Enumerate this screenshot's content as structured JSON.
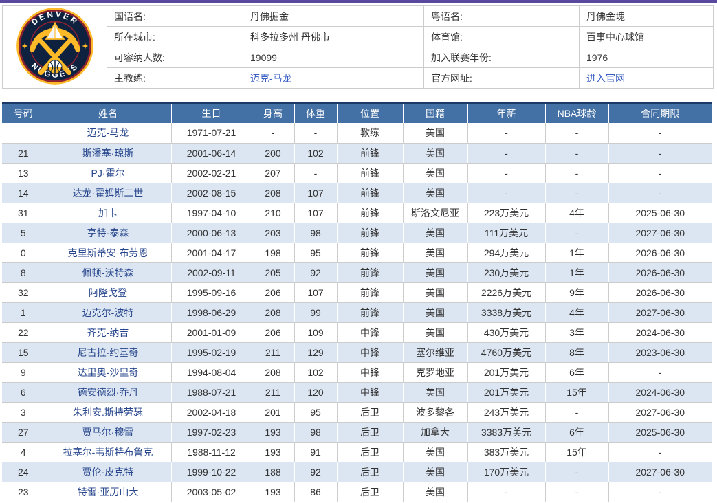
{
  "colors": {
    "top_bar": "#5a4a9f",
    "table_header_bg": "#4471a5",
    "alt_row_bg": "#dce6f2",
    "name_link": "#26458c",
    "info_link": "#3a5fc4",
    "table_top_border": "#1c3a68",
    "logo_navy": "#0e2240",
    "logo_gold": "#fdb927",
    "logo_maroon": "#8b2131"
  },
  "logo": {
    "icon": "denver-nuggets-logo",
    "top_text": "DENVER",
    "bottom_text": "NUGGETS"
  },
  "team_info": {
    "fields": [
      {
        "label": "国语名:",
        "value": "丹佛掘金"
      },
      {
        "label": "粤语名:",
        "value": "丹佛金塊"
      },
      {
        "label": "所在城市:",
        "value": "科多拉多州 丹佛市"
      },
      {
        "label": "体育馆:",
        "value": "百事中心球馆"
      },
      {
        "label": "可容纳人数:",
        "value": "19099"
      },
      {
        "label": "加入联赛年份:",
        "value": "1976"
      },
      {
        "label": "主教练:",
        "value": "迈克-马龙"
      },
      {
        "label": "官方网址:",
        "value": "进入官网"
      }
    ]
  },
  "roster": {
    "columns": [
      "号码",
      "姓名",
      "生日",
      "身高",
      "体重",
      "位置",
      "国籍",
      "年薪",
      "NBA球龄",
      "合同期限"
    ],
    "rows": [
      [
        "",
        "迈克-马龙",
        "1971-07-21",
        "-",
        "-",
        "教练",
        "美国",
        "-",
        "-",
        "-"
      ],
      [
        "21",
        "斯潘塞·琼斯",
        "2001-06-14",
        "200",
        "102",
        "前锋",
        "美国",
        "-",
        "-",
        "-"
      ],
      [
        "13",
        "PJ·霍尔",
        "2002-02-21",
        "207",
        "-",
        "前锋",
        "美国",
        "-",
        "-",
        "-"
      ],
      [
        "14",
        "达龙·霍姆斯二世",
        "2002-08-15",
        "208",
        "107",
        "前锋",
        "美国",
        "-",
        "-",
        "-"
      ],
      [
        "31",
        "加卡",
        "1997-04-10",
        "210",
        "107",
        "前锋",
        "斯洛文尼亚",
        "223万美元",
        "4年",
        "2025-06-30"
      ],
      [
        "5",
        "亨特·泰森",
        "2000-06-13",
        "203",
        "98",
        "前锋",
        "美国",
        "111万美元",
        "-",
        "2027-06-30"
      ],
      [
        "0",
        "克里斯蒂安-布劳恩",
        "2001-04-17",
        "198",
        "95",
        "前锋",
        "美国",
        "294万美元",
        "1年",
        "2026-06-30"
      ],
      [
        "8",
        "佩顿-沃特森",
        "2002-09-11",
        "205",
        "92",
        "前锋",
        "美国",
        "230万美元",
        "1年",
        "2026-06-30"
      ],
      [
        "32",
        "阿隆戈登",
        "1995-09-16",
        "206",
        "107",
        "前锋",
        "美国",
        "2226万美元",
        "9年",
        "2026-06-30"
      ],
      [
        "1",
        "迈克尔-波特",
        "1998-06-29",
        "208",
        "99",
        "前锋",
        "美国",
        "3338万美元",
        "4年",
        "2027-06-30"
      ],
      [
        "22",
        "齐克-纳吉",
        "2001-01-09",
        "206",
        "109",
        "中锋",
        "美国",
        "430万美元",
        "3年",
        "2024-06-30"
      ],
      [
        "15",
        "尼古拉·约基奇",
        "1995-02-19",
        "211",
        "129",
        "中锋",
        "塞尔维亚",
        "4760万美元",
        "8年",
        "2023-06-30"
      ],
      [
        "9",
        "达里奥-沙里奇",
        "1994-08-04",
        "208",
        "102",
        "中锋",
        "克罗地亚",
        "201万美元",
        "6年",
        "-"
      ],
      [
        "6",
        "德安德烈·乔丹",
        "1988-07-21",
        "211",
        "120",
        "中锋",
        "美国",
        "201万美元",
        "15年",
        "2024-06-30"
      ],
      [
        "3",
        "朱利安.斯特劳瑟",
        "2002-04-18",
        "201",
        "95",
        "后卫",
        "波多黎各",
        "243万美元",
        "-",
        "2027-06-30"
      ],
      [
        "27",
        "贾马尔·穆雷",
        "1997-02-23",
        "193",
        "98",
        "后卫",
        "加拿大",
        "3383万美元",
        "6年",
        "2025-06-30"
      ],
      [
        "4",
        "拉塞尔-韦斯特布鲁克",
        "1988-11-12",
        "193",
        "91",
        "后卫",
        "美国",
        "383万美元",
        "15年",
        "-"
      ],
      [
        "24",
        "贾伦·皮克特",
        "1999-10-22",
        "188",
        "92",
        "后卫",
        "美国",
        "170万美元",
        "-",
        "2027-06-30"
      ],
      [
        "23",
        "特雷·亚历山大",
        "2003-05-02",
        "193",
        "86",
        "后卫",
        "美国",
        "-",
        "-",
        "-"
      ]
    ]
  }
}
